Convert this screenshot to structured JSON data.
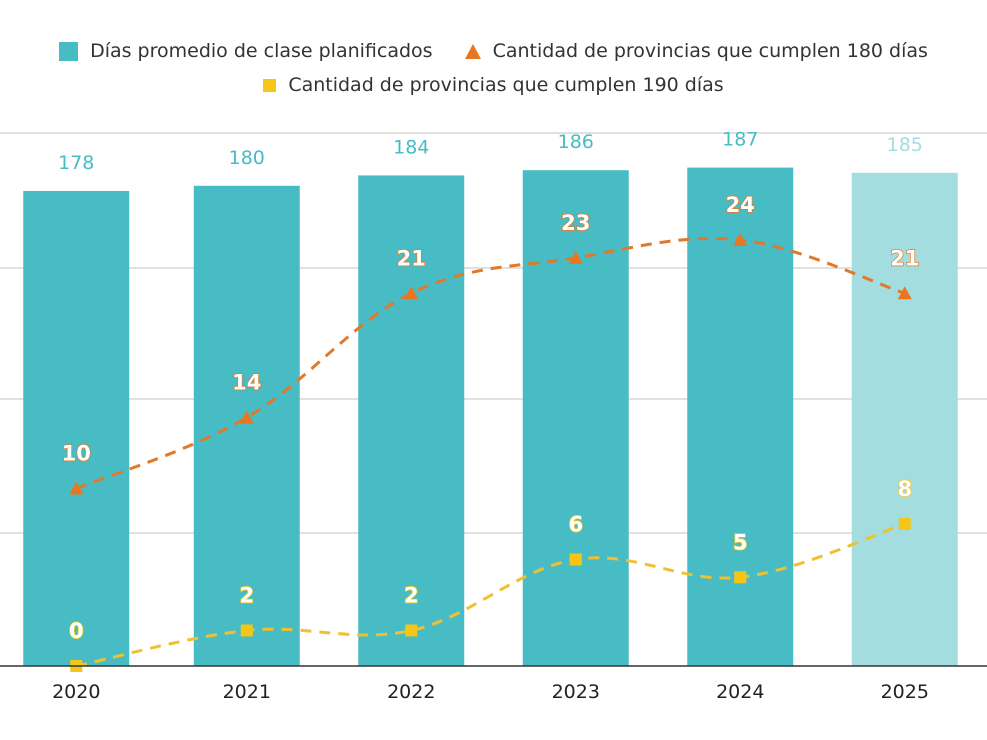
{
  "colors": {
    "bar": "#48bcc4",
    "bar_projected": "#a3dde0",
    "line180": "#e07a2a",
    "line190": "#f0c030",
    "label180": "#e87722",
    "label190": "#f5c518",
    "grid": "#cfcfcf"
  },
  "legend": {
    "bars": "Días promedio de clase planificados",
    "line180": "Cantidad de provincias que cumplen 180 días",
    "line190": "Cantidad de provincias que cumplen 190 días"
  },
  "chart_data": {
    "type": "bar",
    "categories": [
      "2020",
      "2021",
      "2022",
      "2023",
      "2024",
      "2025"
    ],
    "series": [
      {
        "name": "Días promedio de clase planificados",
        "type": "bar",
        "values": [
          178,
          180,
          184,
          186,
          187,
          185
        ],
        "projected_index": 5
      },
      {
        "name": "Cantidad de provincias que cumplen 180 días",
        "type": "line",
        "marker": "triangle",
        "style": "dashed",
        "values": [
          10,
          14,
          21,
          23,
          24,
          21
        ]
      },
      {
        "name": "Cantidad de provincias que cumplen 190 días",
        "type": "line",
        "marker": "square",
        "style": "dashed",
        "values": [
          0,
          2,
          2,
          6,
          5,
          8
        ]
      }
    ],
    "bar_axis_range": [
      0,
      200
    ],
    "line_axis_range": [
      0,
      28
    ],
    "grid": true,
    "legend_position": "top"
  }
}
